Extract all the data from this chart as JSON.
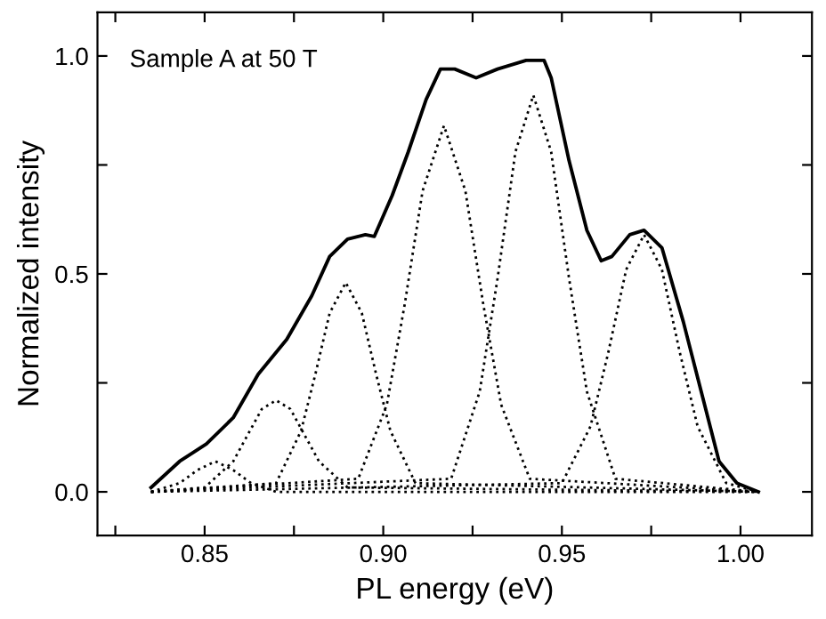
{
  "chart_data": {
    "type": "line",
    "xlabel": "PL energy (eV)",
    "ylabel": "Normalized intensity",
    "annotations": [
      "Sample A at 50 T"
    ],
    "xlim": [
      0.82,
      1.02
    ],
    "ylim": [
      -0.1,
      1.1
    ],
    "xticks": [
      {
        "value": 0.825,
        "label": null
      },
      {
        "value": 0.85,
        "label": "0.85"
      },
      {
        "value": 0.875,
        "label": null
      },
      {
        "value": 0.9,
        "label": "0.90"
      },
      {
        "value": 0.925,
        "label": null
      },
      {
        "value": 0.95,
        "label": "0.95"
      },
      {
        "value": 0.975,
        "label": null
      },
      {
        "value": 1.0,
        "label": "1.00"
      }
    ],
    "yticks": [
      {
        "value": 0,
        "label": "0.0"
      },
      {
        "value": 0.25,
        "label": null
      },
      {
        "value": 0.5,
        "label": "0.5"
      },
      {
        "value": 0.75,
        "label": null
      },
      {
        "value": 1.0,
        "label": "1.0"
      }
    ],
    "grid": false,
    "marker": "none",
    "series": [
      {
        "color": "#000000",
        "line_style": "solid",
        "x": [
          0.835,
          0.843,
          0.8505,
          0.858,
          0.865,
          0.873,
          0.88,
          0.885,
          0.89,
          0.895,
          0.8975,
          0.9025,
          0.907,
          0.912,
          0.916,
          0.92,
          0.926,
          0.932,
          0.94,
          0.945,
          0.947,
          0.952,
          0.957,
          0.961,
          0.964,
          0.969,
          0.973,
          0.978,
          0.984,
          0.989,
          0.994,
          0.999,
          1.005
        ],
        "values": [
          0.01,
          0.07,
          0.11,
          0.17,
          0.27,
          0.35,
          0.45,
          0.54,
          0.58,
          0.59,
          0.586,
          0.68,
          0.78,
          0.9,
          0.97,
          0.97,
          0.95,
          0.97,
          0.99,
          0.99,
          0.95,
          0.76,
          0.6,
          0.53,
          0.54,
          0.59,
          0.6,
          0.56,
          0.39,
          0.23,
          0.07,
          0.02,
          0.0
        ]
      },
      {
        "color": "#000000",
        "line_style": "dotted",
        "x": [
          0.835,
          0.843,
          0.848,
          0.853,
          0.858,
          0.863,
          0.87,
          1.005
        ],
        "values": [
          0,
          0.02,
          0.05,
          0.07,
          0.05,
          0.02,
          0,
          0
        ]
      },
      {
        "color": "#000000",
        "line_style": "dotted",
        "x": [
          0.835,
          0.85,
          0.858,
          0.862,
          0.866,
          0.87,
          0.874,
          0.878,
          0.882,
          0.89,
          1.005
        ],
        "values": [
          0,
          0.01,
          0.07,
          0.13,
          0.19,
          0.21,
          0.19,
          0.13,
          0.07,
          0.01,
          0
        ]
      },
      {
        "color": "#000000",
        "line_style": "dotted",
        "x": [
          0.835,
          0.87,
          0.877,
          0.881,
          0.885,
          0.8895,
          0.894,
          0.898,
          0.902,
          0.909,
          1.005
        ],
        "values": [
          0,
          0.02,
          0.14,
          0.27,
          0.41,
          0.48,
          0.41,
          0.27,
          0.14,
          0.02,
          0
        ]
      },
      {
        "color": "#000000",
        "line_style": "dotted",
        "x": [
          0.835,
          0.893,
          0.901,
          0.906,
          0.911,
          0.917,
          0.923,
          0.928,
          0.933,
          0.941,
          1.005
        ],
        "values": [
          0,
          0.03,
          0.2,
          0.43,
          0.69,
          0.84,
          0.69,
          0.43,
          0.2,
          0.03,
          0
        ]
      },
      {
        "color": "#000000",
        "line_style": "dotted",
        "x": [
          0.835,
          0.919,
          0.927,
          0.932,
          0.937,
          0.942,
          0.947,
          0.952,
          0.957,
          0.965,
          1.005
        ],
        "values": [
          0,
          0.03,
          0.23,
          0.49,
          0.78,
          0.91,
          0.78,
          0.49,
          0.23,
          0.03,
          0
        ]
      },
      {
        "color": "#000000",
        "line_style": "dotted",
        "x": [
          0.835,
          0.95,
          0.958,
          0.963,
          0.968,
          0.973,
          0.978,
          0.983,
          0.988,
          0.996,
          1.005
        ],
        "values": [
          0,
          0.02,
          0.15,
          0.32,
          0.51,
          0.59,
          0.51,
          0.32,
          0.15,
          0.02,
          0
        ]
      }
    ]
  }
}
